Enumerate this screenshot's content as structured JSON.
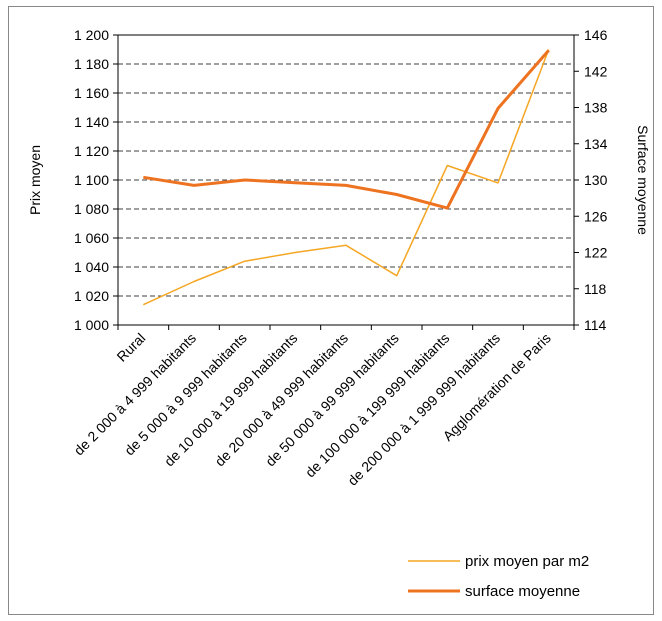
{
  "chart_data": {
    "type": "line",
    "title": "",
    "categories": [
      "Rural",
      "de 2 000 à 4 999 habitants",
      "de 5 000 à 9 999 habitants",
      "de 10 000 à 19 999 habitants",
      "de 20 000 à 49 999 habitants",
      "de 50 000 à 99 999 habitants",
      "de 100 000 à 199 999 habitants",
      "de 200 000 à 1 999 999 habitants",
      "Agglomération de Paris"
    ],
    "y_left": {
      "label": "Prix moyen",
      "range": [
        1000,
        1200
      ],
      "ticks": [
        "1 000",
        "1 020",
        "1 040",
        "1 060",
        "1 080",
        "1 100",
        "1 120",
        "1 140",
        "1 160",
        "1 180",
        "1 200"
      ],
      "tick_values": [
        1000,
        1020,
        1040,
        1060,
        1080,
        1100,
        1120,
        1140,
        1160,
        1180,
        1200
      ]
    },
    "y_right": {
      "label": "Surface moyenne",
      "range": [
        114,
        146
      ],
      "ticks": [
        "114",
        "118",
        "122",
        "126",
        "130",
        "134",
        "138",
        "142",
        "146"
      ],
      "tick_values": [
        114,
        118,
        122,
        126,
        130,
        134,
        138,
        142,
        146
      ]
    },
    "series": [
      {
        "name": "prix moyen par m2",
        "axis": "left",
        "color": "#F5A623",
        "values": [
          1014,
          1030,
          1044,
          1050,
          1055,
          1034,
          1110,
          1098,
          1190
        ]
      },
      {
        "name": "surface moyenne",
        "axis": "right",
        "color": "#EE7320",
        "values": [
          130.3,
          129.4,
          130.0,
          129.7,
          129.4,
          128.4,
          126.9,
          137.9,
          144.3
        ]
      }
    ],
    "grid": "horizontal dashed",
    "legend_position": "bottom-right"
  }
}
